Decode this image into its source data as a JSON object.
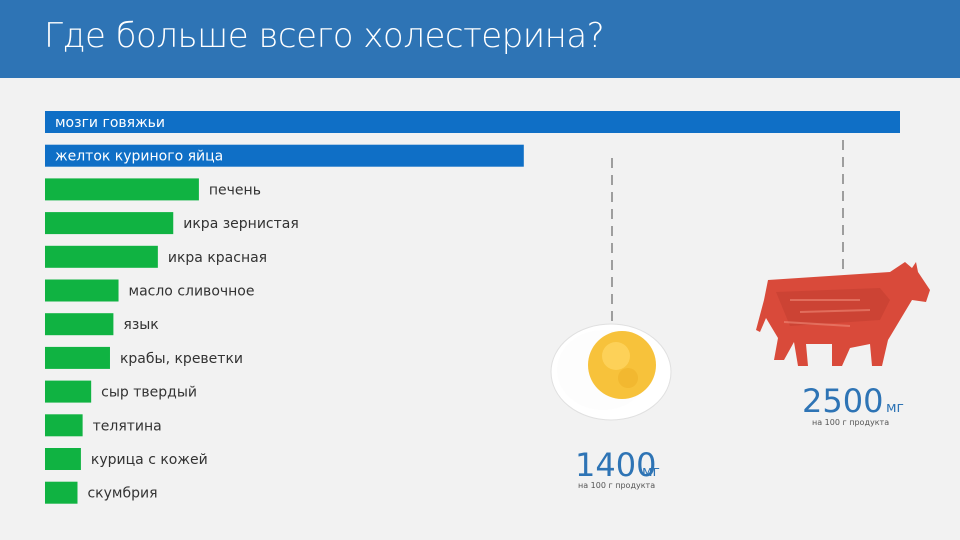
{
  "slide": {
    "title": "Где больше всего холестерина?"
  },
  "colors": {
    "header": "#2e74b5",
    "blue_bar": "#0f6fc6",
    "green_bar": "#10b342",
    "value_text": "#2e74b5",
    "cow": "#d94a3a",
    "egg_yolk": "#f7c23b"
  },
  "chart_data": {
    "type": "bar",
    "orientation": "horizontal",
    "categories": [
      "мозги говяжьи",
      "желток куриного яйца",
      "печень",
      "икра зернистая",
      "икра красная",
      "масло сливочное",
      "язык",
      "крабы, креветки",
      "сыр твердый",
      "телятина",
      "курица с кожей",
      "скумбрия"
    ],
    "values": [
      2500,
      1400,
      450,
      375,
      330,
      215,
      200,
      190,
      135,
      110,
      105,
      95
    ],
    "highlighted": [
      0,
      1
    ],
    "unit": "мг",
    "title": "",
    "xlabel": "",
    "ylabel": ""
  },
  "callouts": {
    "beef_brain": {
      "value": "2500",
      "unit": "мг",
      "sub": "на 100 г продукта",
      "icon": "cow-icon"
    },
    "egg_yolk": {
      "value": "1400",
      "unit": "мг",
      "sub": "на 100 г продукта",
      "icon": "egg-icon"
    }
  }
}
